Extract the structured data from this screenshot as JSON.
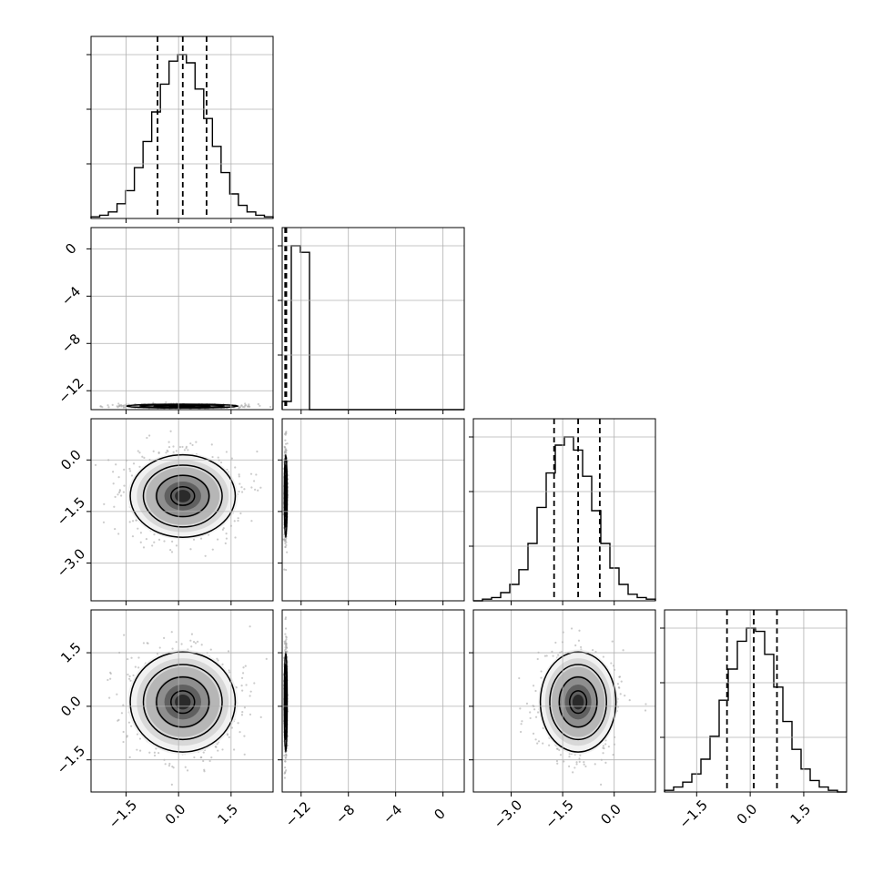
{
  "chart_data": {
    "type": "corner-plot",
    "title": "",
    "description": "Triangular matrix of 1D marginal histograms (diagonal) and 2D joint density contour/scatter plots (lower triangle) for 4 parameters. Dashed vertical lines mark quantiles on each histogram.",
    "grid": true,
    "parameters": [
      {
        "index": 0,
        "label": "",
        "range": [
          -2.5,
          2.7
        ],
        "ticks": [
          -1.5,
          0.0,
          1.5
        ],
        "tick_labels": [
          "−1.5",
          "0.0",
          "1.5"
        ],
        "quantiles": [
          -0.6,
          0.12,
          0.8
        ]
      },
      {
        "index": 1,
        "label": "",
        "range": [
          -13.6,
          1.8
        ],
        "ticks": [
          -12,
          -8,
          -4,
          0
        ],
        "tick_labels": [
          "−12",
          "−8",
          "−4",
          "0"
        ],
        "quantiles": [
          -13.35,
          -13.3,
          -13.25
        ]
      },
      {
        "index": 2,
        "label": "",
        "range": [
          -4.1,
          1.2
        ],
        "ticks": [
          -3.0,
          -1.5,
          0.0
        ],
        "tick_labels": [
          "−3.0",
          "−1.5",
          "0.0"
        ],
        "quantiles": [
          -1.75,
          -1.05,
          -0.42
        ]
      },
      {
        "index": 3,
        "label": "",
        "range": [
          -2.4,
          2.7
        ],
        "ticks": [
          -1.5,
          0.0,
          1.5
        ],
        "tick_labels": [
          "−1.5",
          "0.0",
          "1.5"
        ],
        "quantiles": [
          -0.65,
          0.1,
          0.75
        ]
      }
    ],
    "histograms": [
      {
        "param": 0,
        "bins": [
          -2.5,
          2.7
        ],
        "counts": [
          1,
          2,
          4,
          9,
          17,
          31,
          47,
          65,
          82,
          96,
          100,
          95,
          79,
          61,
          44,
          28,
          15,
          8,
          4,
          2,
          1
        ]
      },
      {
        "param": 1,
        "bins": [
          -13.6,
          1.8
        ],
        "counts": [
          5,
          100,
          96,
          0,
          0,
          0,
          0,
          0,
          0,
          0,
          0,
          0,
          0,
          0,
          0,
          0,
          0,
          0,
          0,
          0
        ]
      },
      {
        "param": 2,
        "bins": [
          -4.1,
          1.2
        ],
        "counts": [
          0,
          1,
          2,
          5,
          10,
          19,
          35,
          57,
          78,
          95,
          100,
          92,
          76,
          55,
          35,
          20,
          10,
          4,
          2,
          1
        ]
      },
      {
        "param": 3,
        "bins": [
          -2.4,
          2.7
        ],
        "counts": [
          1,
          3,
          6,
          11,
          20,
          34,
          56,
          75,
          92,
          100,
          98,
          84,
          64,
          43,
          26,
          14,
          7,
          3,
          1,
          0
        ]
      }
    ],
    "joint_plots": [
      {
        "x_param": 0,
        "y_param": 1,
        "center": [
          0.1,
          -13.3
        ],
        "spread": [
          0.8,
          0.08
        ]
      },
      {
        "x_param": 0,
        "y_param": 2,
        "center": [
          0.12,
          -1.05
        ],
        "spread": [
          0.75,
          0.6
        ]
      },
      {
        "x_param": 1,
        "y_param": 2,
        "center": [
          -13.3,
          -1.05
        ],
        "spread": [
          0.06,
          0.6
        ]
      },
      {
        "x_param": 0,
        "y_param": 3,
        "center": [
          0.12,
          0.12
        ],
        "spread": [
          0.75,
          0.7
        ]
      },
      {
        "x_param": 1,
        "y_param": 3,
        "center": [
          -13.3,
          0.12
        ],
        "spread": [
          0.06,
          0.7
        ]
      },
      {
        "x_param": 2,
        "y_param": 3,
        "center": [
          -1.05,
          0.12
        ],
        "spread": [
          0.55,
          0.7
        ]
      }
    ],
    "colors": {
      "hist_line": "#000000",
      "quantile_line": "#000000",
      "grid": "#b0b0b0",
      "scatter": "#a9a9a9",
      "density_dark": "#111111"
    }
  }
}
